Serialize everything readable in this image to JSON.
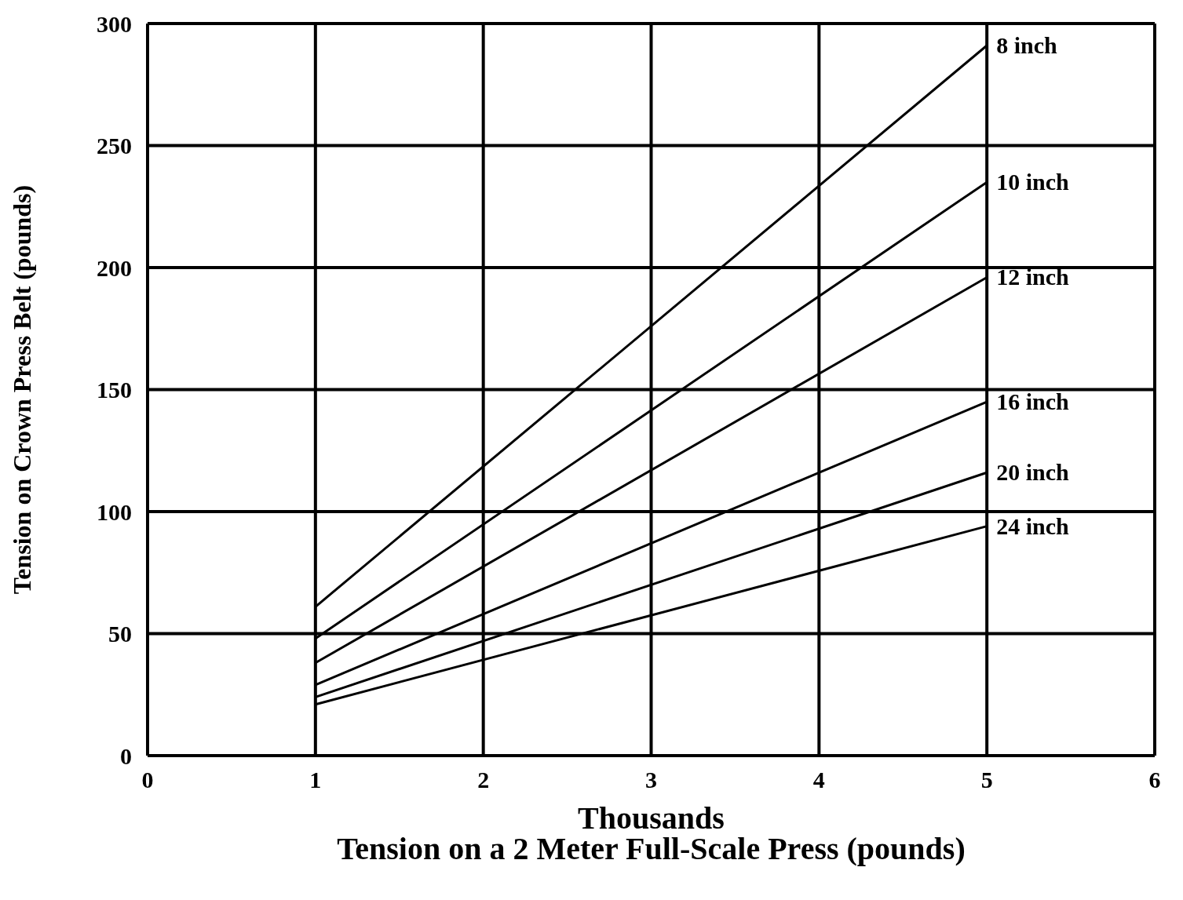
{
  "chart_data": {
    "type": "line",
    "title": "Tension on a 2 Meter Full-Scale Press (pounds)",
    "xlabel": "Thousands",
    "ylabel": "Tension on Crown Press Belt (pounds)",
    "x": [
      1,
      5
    ],
    "series": [
      {
        "name": "8 inch",
        "color": "#000000",
        "values": [
          61,
          291
        ]
      },
      {
        "name": "10 inch",
        "color": "#000000",
        "values": [
          48,
          235
        ]
      },
      {
        "name": "12 inch",
        "color": "#000000",
        "values": [
          38,
          196
        ]
      },
      {
        "name": "16 inch",
        "color": "#000000",
        "values": [
          29,
          145
        ]
      },
      {
        "name": "20 inch",
        "color": "#000000",
        "values": [
          24,
          116
        ]
      },
      {
        "name": "24 inch",
        "color": "#000000",
        "values": [
          21,
          94
        ]
      }
    ],
    "xlim": [
      0,
      6
    ],
    "xticks": [
      0,
      1,
      2,
      3,
      4,
      5,
      6
    ],
    "ylim": [
      0,
      300
    ],
    "yticks": [
      0,
      50,
      100,
      150,
      200,
      250,
      300
    ],
    "grid": true,
    "marker": "none",
    "line_style": "solid"
  }
}
